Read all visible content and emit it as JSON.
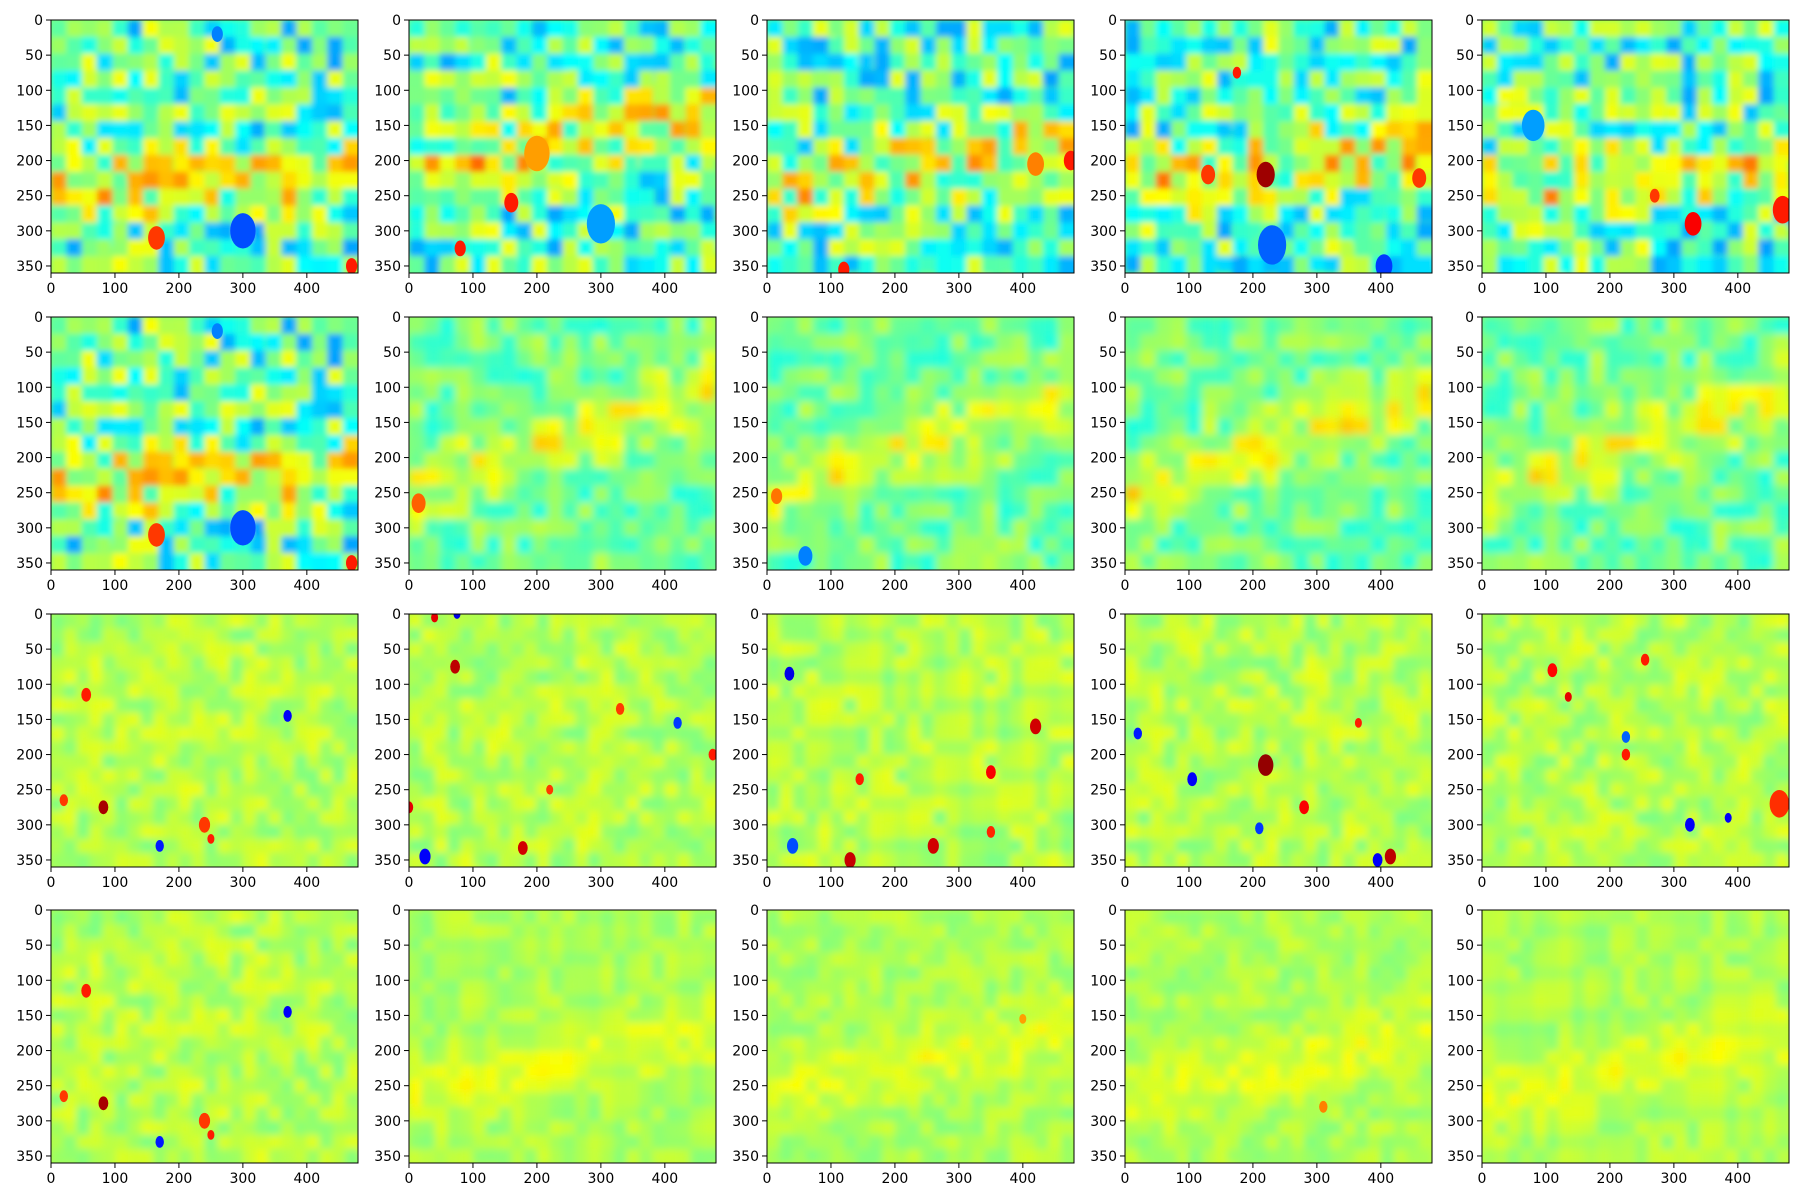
{
  "chart_data": {
    "type": "heatmap",
    "layout": {
      "rows": 4,
      "cols": 5
    },
    "colormap": "jet",
    "colormap_stops": [
      "#00007f",
      "#0000ff",
      "#007fff",
      "#00ffff",
      "#7fff7f",
      "#ffff00",
      "#ff7f00",
      "#ff0000",
      "#7f0000"
    ],
    "image_width": 480,
    "image_height": 360,
    "xlim": [
      0,
      480
    ],
    "ylim": [
      360,
      0
    ],
    "x_ticks": [
      "0",
      "100",
      "200",
      "300",
      "400"
    ],
    "y_ticks": [
      "0",
      "50",
      "100",
      "150",
      "200",
      "250",
      "300",
      "350"
    ],
    "x_tick_values": [
      0,
      100,
      200,
      300,
      400
    ],
    "y_tick_values": [
      0,
      50,
      100,
      150,
      200,
      250,
      300,
      350
    ],
    "grid": false,
    "panels": [
      {
        "row": 0,
        "col": 0,
        "pattern": "patchy_band",
        "base": 0.5,
        "amp": 0.14,
        "band_center": 230,
        "band_slope": -0.05,
        "seed": 1,
        "spots": [
          [
            300,
            300,
            18,
            0.2
          ],
          [
            165,
            310,
            12,
            0.82
          ],
          [
            470,
            350,
            8,
            0.85
          ],
          [
            260,
            20,
            8,
            0.25
          ]
        ]
      },
      {
        "row": 0,
        "col": 1,
        "pattern": "patchy_band",
        "base": 0.5,
        "amp": 0.14,
        "band_center": 210,
        "band_slope": -0.2,
        "seed": 2,
        "spots": [
          [
            160,
            260,
            10,
            0.85
          ],
          [
            80,
            325,
            8,
            0.85
          ],
          [
            200,
            190,
            18,
            0.72
          ],
          [
            300,
            290,
            20,
            0.28
          ]
        ]
      },
      {
        "row": 0,
        "col": 2,
        "pattern": "patchy_band",
        "base": 0.5,
        "amp": 0.14,
        "band_center": 230,
        "band_slope": -0.15,
        "seed": 3,
        "spots": [
          [
            475,
            200,
            10,
            0.85
          ],
          [
            420,
            205,
            12,
            0.75
          ],
          [
            120,
            355,
            8,
            0.85
          ]
        ]
      },
      {
        "row": 0,
        "col": 3,
        "pattern": "patchy_band",
        "base": 0.5,
        "amp": 0.14,
        "band_center": 220,
        "band_slope": -0.1,
        "seed": 4,
        "spots": [
          [
            220,
            220,
            13,
            0.97
          ],
          [
            130,
            220,
            10,
            0.82
          ],
          [
            405,
            350,
            12,
            0.18
          ],
          [
            230,
            320,
            20,
            0.22
          ],
          [
            175,
            75,
            6,
            0.85
          ],
          [
            460,
            225,
            10,
            0.82
          ]
        ]
      },
      {
        "row": 0,
        "col": 4,
        "pattern": "patchy_band",
        "base": 0.5,
        "amp": 0.14,
        "band_center": 240,
        "band_slope": -0.1,
        "seed": 5,
        "spots": [
          [
            330,
            290,
            12,
            0.88
          ],
          [
            470,
            270,
            14,
            0.85
          ],
          [
            270,
            250,
            7,
            0.82
          ],
          [
            80,
            150,
            16,
            0.28
          ]
        ]
      },
      {
        "row": 1,
        "col": 0,
        "pattern": "patchy_band",
        "base": 0.5,
        "amp": 0.14,
        "band_center": 230,
        "band_slope": -0.05,
        "seed": 1,
        "spots": [
          [
            300,
            300,
            18,
            0.2
          ],
          [
            165,
            310,
            12,
            0.82
          ],
          [
            470,
            350,
            8,
            0.85
          ],
          [
            260,
            20,
            8,
            0.25
          ]
        ]
      },
      {
        "row": 1,
        "col": 1,
        "pattern": "smooth_band",
        "base": 0.52,
        "amp": 0.1,
        "band_center": 230,
        "band_slope": -0.3,
        "seed": 6,
        "spots": [
          [
            15,
            265,
            10,
            0.78
          ]
        ]
      },
      {
        "row": 1,
        "col": 2,
        "pattern": "smooth_band",
        "base": 0.52,
        "amp": 0.1,
        "band_center": 240,
        "band_slope": -0.3,
        "seed": 7,
        "spots": [
          [
            60,
            340,
            10,
            0.25
          ],
          [
            15,
            255,
            8,
            0.76
          ]
        ]
      },
      {
        "row": 1,
        "col": 3,
        "pattern": "smooth_band",
        "base": 0.52,
        "amp": 0.1,
        "band_center": 240,
        "band_slope": -0.3,
        "seed": 8,
        "spots": []
      },
      {
        "row": 1,
        "col": 4,
        "pattern": "smooth_band",
        "base": 0.52,
        "amp": 0.1,
        "band_center": 235,
        "band_slope": -0.3,
        "seed": 9,
        "spots": []
      },
      {
        "row": 2,
        "col": 0,
        "pattern": "speckle",
        "base": 0.55,
        "amp": 0.07,
        "seed": 10,
        "spots": [
          [
            82,
            275,
            7,
            0.96
          ],
          [
            55,
            115,
            7,
            0.85
          ],
          [
            370,
            145,
            6,
            0.12
          ],
          [
            170,
            330,
            6,
            0.15
          ],
          [
            240,
            300,
            8,
            0.82
          ],
          [
            20,
            265,
            6,
            0.82
          ],
          [
            250,
            320,
            5,
            0.85
          ]
        ]
      },
      {
        "row": 2,
        "col": 1,
        "pattern": "speckle",
        "base": 0.55,
        "amp": 0.07,
        "seed": 11,
        "spots": [
          [
            72,
            75,
            7,
            0.94
          ],
          [
            178,
            333,
            7,
            0.92
          ],
          [
            40,
            5,
            5,
            0.9
          ],
          [
            75,
            0,
            5,
            0.1
          ],
          [
            25,
            345,
            8,
            0.12
          ],
          [
            475,
            200,
            6,
            0.85
          ],
          [
            0,
            275,
            6,
            0.9
          ],
          [
            330,
            135,
            6,
            0.82
          ],
          [
            420,
            155,
            6,
            0.18
          ],
          [
            220,
            250,
            5,
            0.82
          ]
        ]
      },
      {
        "row": 2,
        "col": 2,
        "pattern": "speckle",
        "base": 0.55,
        "amp": 0.07,
        "seed": 12,
        "spots": [
          [
            420,
            160,
            8,
            0.92
          ],
          [
            35,
            85,
            7,
            0.1
          ],
          [
            260,
            330,
            8,
            0.92
          ],
          [
            130,
            350,
            8,
            0.93
          ],
          [
            350,
            225,
            7,
            0.88
          ],
          [
            40,
            330,
            8,
            0.2
          ],
          [
            350,
            310,
            6,
            0.84
          ],
          [
            145,
            235,
            6,
            0.85
          ]
        ]
      },
      {
        "row": 2,
        "col": 3,
        "pattern": "speckle",
        "base": 0.55,
        "amp": 0.07,
        "seed": 13,
        "spots": [
          [
            220,
            215,
            11,
            0.98
          ],
          [
            415,
            345,
            8,
            0.94
          ],
          [
            105,
            235,
            7,
            0.12
          ],
          [
            280,
            275,
            7,
            0.88
          ],
          [
            395,
            350,
            7,
            0.12
          ],
          [
            20,
            170,
            6,
            0.15
          ],
          [
            210,
            305,
            6,
            0.18
          ],
          [
            365,
            155,
            5,
            0.85
          ]
        ]
      },
      {
        "row": 2,
        "col": 4,
        "pattern": "speckle",
        "base": 0.55,
        "amp": 0.07,
        "seed": 14,
        "spots": [
          [
            325,
            300,
            7,
            0.12
          ],
          [
            110,
            80,
            7,
            0.87
          ],
          [
            135,
            118,
            5,
            0.9
          ],
          [
            255,
            65,
            6,
            0.85
          ],
          [
            465,
            270,
            14,
            0.83
          ],
          [
            225,
            175,
            6,
            0.22
          ],
          [
            385,
            290,
            5,
            0.12
          ],
          [
            225,
            200,
            6,
            0.85
          ]
        ]
      },
      {
        "row": 3,
        "col": 0,
        "pattern": "speckle",
        "base": 0.55,
        "amp": 0.07,
        "seed": 10,
        "spots": [
          [
            82,
            275,
            7,
            0.96
          ],
          [
            55,
            115,
            7,
            0.85
          ],
          [
            370,
            145,
            6,
            0.12
          ],
          [
            170,
            330,
            6,
            0.15
          ],
          [
            240,
            300,
            8,
            0.82
          ],
          [
            20,
            265,
            6,
            0.82
          ],
          [
            250,
            320,
            5,
            0.85
          ]
        ]
      },
      {
        "row": 3,
        "col": 1,
        "pattern": "flat",
        "base": 0.56,
        "amp": 0.05,
        "band_center": 250,
        "band_slope": -0.2,
        "seed": 15,
        "spots": []
      },
      {
        "row": 3,
        "col": 2,
        "pattern": "flat",
        "base": 0.56,
        "amp": 0.05,
        "band_center": 250,
        "band_slope": -0.2,
        "seed": 16,
        "spots": [
          [
            400,
            155,
            5,
            0.72
          ]
        ]
      },
      {
        "row": 3,
        "col": 3,
        "pattern": "flat",
        "base": 0.56,
        "amp": 0.05,
        "band_center": 260,
        "band_slope": -0.2,
        "seed": 17,
        "spots": [
          [
            310,
            280,
            6,
            0.75
          ]
        ]
      },
      {
        "row": 3,
        "col": 4,
        "pattern": "flat",
        "base": 0.56,
        "amp": 0.05,
        "band_center": 260,
        "band_slope": -0.2,
        "seed": 18,
        "spots": []
      }
    ]
  }
}
